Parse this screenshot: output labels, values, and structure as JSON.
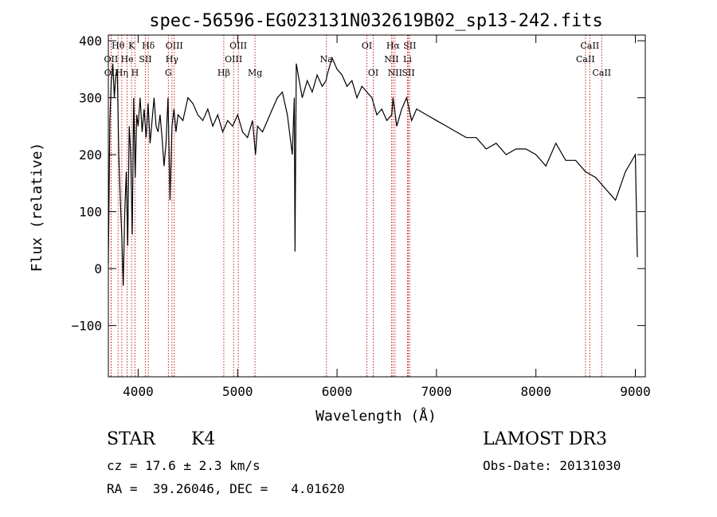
{
  "chart_data": {
    "type": "line",
    "title": "spec-56596-EG023131N032619B02_sp13-242.fits",
    "xlabel": "Wavelength (Å)",
    "ylabel": "Flux (relative)",
    "xlim": [
      3700,
      9100
    ],
    "ylim": [
      -190,
      410
    ],
    "xticks": [
      4000,
      5000,
      6000,
      7000,
      8000,
      9000
    ],
    "yticks": [
      -100,
      0,
      100,
      200,
      300,
      400
    ],
    "grid": false,
    "line_color": "#000000",
    "marker_color": "#cc2222",
    "series": [
      {
        "x": [
          3700,
          3715,
          3730,
          3745,
          3760,
          3775,
          3790,
          3805,
          3820,
          3835,
          3850,
          3865,
          3880,
          3895,
          3910,
          3925,
          3940,
          3955,
          3970,
          3985,
          4000,
          4020,
          4040,
          4060,
          4080,
          4100,
          4120,
          4140,
          4160,
          4180,
          4200,
          4220,
          4240,
          4260,
          4280,
          4300,
          4320,
          4340,
          4360,
          4380,
          4400,
          4450,
          4500,
          4550,
          4600,
          4650,
          4700,
          4750,
          4800,
          4850,
          4900,
          4950,
          5000,
          5050,
          5100,
          5150,
          5180,
          5200,
          5250,
          5300,
          5350,
          5400,
          5450,
          5500,
          5550,
          5570,
          5577,
          5590,
          5620,
          5650,
          5700,
          5750,
          5800,
          5850,
          5890,
          5900,
          5950,
          6000,
          6050,
          6100,
          6150,
          6200,
          6250,
          6300,
          6350,
          6400,
          6450,
          6500,
          6550,
          6563,
          6600,
          6650,
          6700,
          6750,
          6800,
          6900,
          7000,
          7100,
          7200,
          7300,
          7400,
          7500,
          7600,
          7700,
          7800,
          7900,
          8000,
          8100,
          8200,
          8300,
          8400,
          8500,
          8600,
          8700,
          8800,
          8900,
          9000,
          9020
        ],
        "values": [
          10,
          260,
          330,
          360,
          300,
          340,
          350,
          200,
          120,
          60,
          -30,
          100,
          170,
          40,
          250,
          200,
          60,
          300,
          160,
          270,
          250,
          300,
          240,
          280,
          230,
          290,
          220,
          260,
          300,
          250,
          240,
          270,
          230,
          180,
          220,
          300,
          120,
          250,
          280,
          240,
          270,
          260,
          300,
          290,
          270,
          260,
          280,
          250,
          270,
          240,
          260,
          250,
          270,
          240,
          230,
          260,
          200,
          250,
          240,
          260,
          280,
          300,
          310,
          270,
          200,
          300,
          30,
          360,
          330,
          300,
          330,
          310,
          340,
          320,
          330,
          340,
          370,
          350,
          340,
          320,
          330,
          300,
          320,
          310,
          300,
          270,
          280,
          260,
          270,
          300,
          250,
          280,
          300,
          260,
          280,
          270,
          260,
          250,
          240,
          230,
          230,
          210,
          220,
          200,
          210,
          210,
          200,
          180,
          220,
          190,
          190,
          170,
          160,
          140,
          120,
          170,
          200,
          20
        ]
      }
    ],
    "markers": [
      {
        "name": "Hθ",
        "x": 3798,
        "row": 0
      },
      {
        "name": "K",
        "x": 3934,
        "row": 0
      },
      {
        "name": "Hδ",
        "x": 4102,
        "row": 0
      },
      {
        "name": "OIII",
        "x": 4363,
        "row": 0
      },
      {
        "name": "OIII",
        "x": 5007,
        "row": 0
      },
      {
        "name": "OI",
        "x": 6300,
        "row": 0
      },
      {
        "name": "Hα",
        "x": 6563,
        "row": 0
      },
      {
        "name": "SII",
        "x": 6731,
        "row": 0
      },
      {
        "name": "CaII",
        "x": 8542,
        "row": 0
      },
      {
        "name": "OII",
        "x": 3727,
        "row": 1
      },
      {
        "name": "He",
        "x": 3889,
        "row": 1
      },
      {
        "name": "SII",
        "x": 4072,
        "row": 1
      },
      {
        "name": "Hγ",
        "x": 4340,
        "row": 1
      },
      {
        "name": "OIII",
        "x": 4959,
        "row": 1
      },
      {
        "name": "Na",
        "x": 5893,
        "row": 1
      },
      {
        "name": "NII",
        "x": 6548,
        "row": 1
      },
      {
        "name": "Li",
        "x": 6708,
        "row": 1
      },
      {
        "name": "CaII",
        "x": 8498,
        "row": 1
      },
      {
        "name": "OII",
        "x": 3729,
        "row": 2
      },
      {
        "name": "Hη",
        "x": 3835,
        "row": 2
      },
      {
        "name": "H",
        "x": 3968,
        "row": 2
      },
      {
        "name": "G",
        "x": 4304,
        "row": 2
      },
      {
        "name": "Hβ",
        "x": 4861,
        "row": 2
      },
      {
        "name": "Mg",
        "x": 5175,
        "row": 2
      },
      {
        "name": "OI",
        "x": 6364,
        "row": 2
      },
      {
        "name": "NII",
        "x": 6583,
        "row": 2
      },
      {
        "name": "SII",
        "x": 6717,
        "row": 2
      },
      {
        "name": "CaII",
        "x": 8662,
        "row": 2
      }
    ]
  },
  "info": {
    "object_class": "STAR",
    "subclass": "K4",
    "survey": "LAMOST DR3",
    "cz": "cz = 17.6 ± 2.3 km/s",
    "obs_date": "Obs-Date: 20131030",
    "coords": "RA =  39.26046, DEC =   4.01620"
  }
}
